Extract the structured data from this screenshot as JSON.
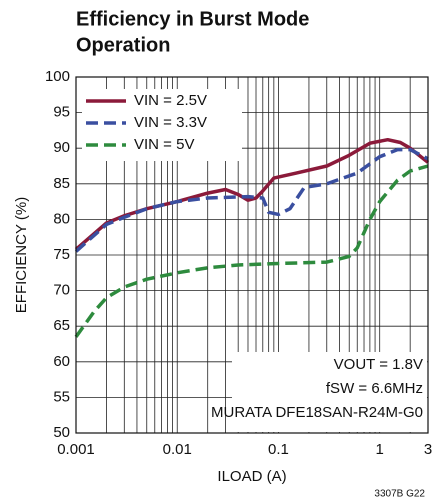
{
  "chart_data": {
    "type": "line",
    "title": [
      "Efficiency in Burst Mode",
      "Operation"
    ],
    "x_label": "ILOAD (A)",
    "y_label": "EFFICIENCY (%)",
    "annotations": [
      "VOUT = 1.8V",
      "fSW = 6.6MHz",
      "MURATA DFE18SAN-R24M-G0"
    ],
    "footnote": "3307B G22",
    "x_scale": "log",
    "minor_grid": true,
    "grid": true,
    "legend": "top-left",
    "xlim": [
      0.001,
      3
    ],
    "xticks": [
      0.001,
      0.01,
      0.1,
      1,
      3
    ],
    "ylim": [
      50,
      100
    ],
    "yticks": [
      50,
      55,
      60,
      65,
      70,
      75,
      80,
      85,
      90,
      95,
      100
    ],
    "series": [
      {
        "name": "VIN = 2.5V",
        "color": "#8b1a3a",
        "dash": "solid",
        "x": [
          0.001,
          0.002,
          0.003,
          0.005,
          0.01,
          0.02,
          0.03,
          0.04,
          0.05,
          0.06,
          0.07,
          0.09,
          0.15,
          0.3,
          0.5,
          0.8,
          1.2,
          1.6,
          2,
          3
        ],
        "values": [
          75.8,
          79.5,
          80.5,
          81.5,
          82.5,
          83.7,
          84.2,
          83.5,
          82.7,
          83,
          84,
          85.8,
          86.5,
          87.5,
          89,
          90.7,
          91.2,
          90.8,
          90,
          88
        ]
      },
      {
        "name": "VIN = 3.3V",
        "color": "#3a4fa0",
        "dash": "dashed",
        "x": [
          0.001,
          0.002,
          0.003,
          0.005,
          0.01,
          0.02,
          0.05,
          0.07,
          0.08,
          0.1,
          0.13,
          0.18,
          0.3,
          0.6,
          1,
          1.5,
          2,
          3
        ],
        "values": [
          75.5,
          79.3,
          80.3,
          81.5,
          82.5,
          83,
          83.2,
          83,
          81,
          80.7,
          81.5,
          84.5,
          85,
          86.5,
          88.8,
          89.8,
          89.8,
          88.5
        ]
      },
      {
        "name": "VIN = 5V",
        "color": "#2e8b3e",
        "dash": "dashed",
        "x": [
          0.001,
          0.0015,
          0.002,
          0.003,
          0.005,
          0.01,
          0.02,
          0.04,
          0.1,
          0.3,
          0.5,
          0.6,
          0.8,
          1,
          1.5,
          2,
          3
        ],
        "values": [
          63.5,
          67,
          69,
          70.5,
          71.6,
          72.5,
          73.2,
          73.6,
          73.8,
          74,
          74.8,
          76,
          80,
          82.5,
          85.5,
          86.8,
          87.5
        ]
      }
    ]
  }
}
